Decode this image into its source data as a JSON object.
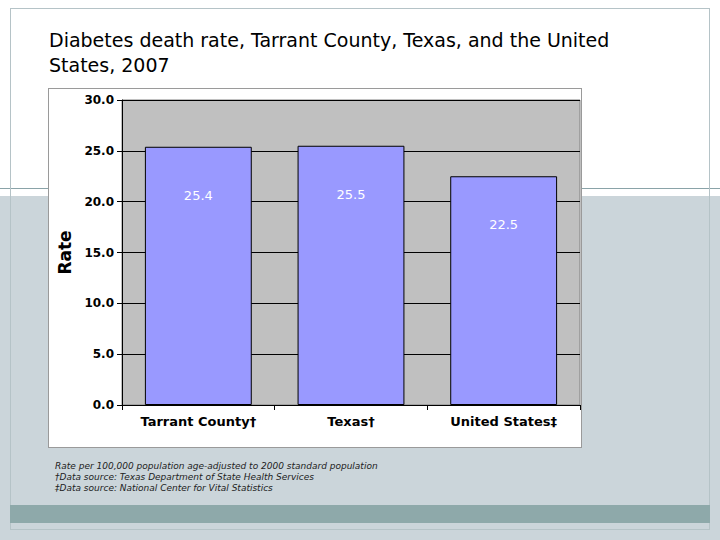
{
  "chart_data": {
    "type": "bar",
    "title": "Diabetes death rate, Tarrant County, Texas, and the United States, 2007",
    "y_label": "Rate",
    "categories": [
      "Tarrant County†",
      "Texas†",
      "United States‡"
    ],
    "values": [
      25.4,
      25.5,
      22.5
    ],
    "color": "#9999ff",
    "ylim": [
      0,
      30
    ],
    "yticks": [
      {
        "value": 0,
        "label": "0.0"
      },
      {
        "value": 5,
        "label": "5.0"
      },
      {
        "value": 10,
        "label": "10.0"
      },
      {
        "value": 15,
        "label": "15.0"
      },
      {
        "value": 20,
        "label": "20.0"
      },
      {
        "value": 25,
        "label": "25.0"
      },
      {
        "value": 30,
        "label": "30.0"
      }
    ],
    "grid": true,
    "data_labels": true,
    "notes": [
      "Rate per 100,000 population age-adjusted to 2000 standard population",
      "†Data source: Texas Department of State Health Services",
      "‡Data source: National Center for Vital Statistics"
    ]
  }
}
